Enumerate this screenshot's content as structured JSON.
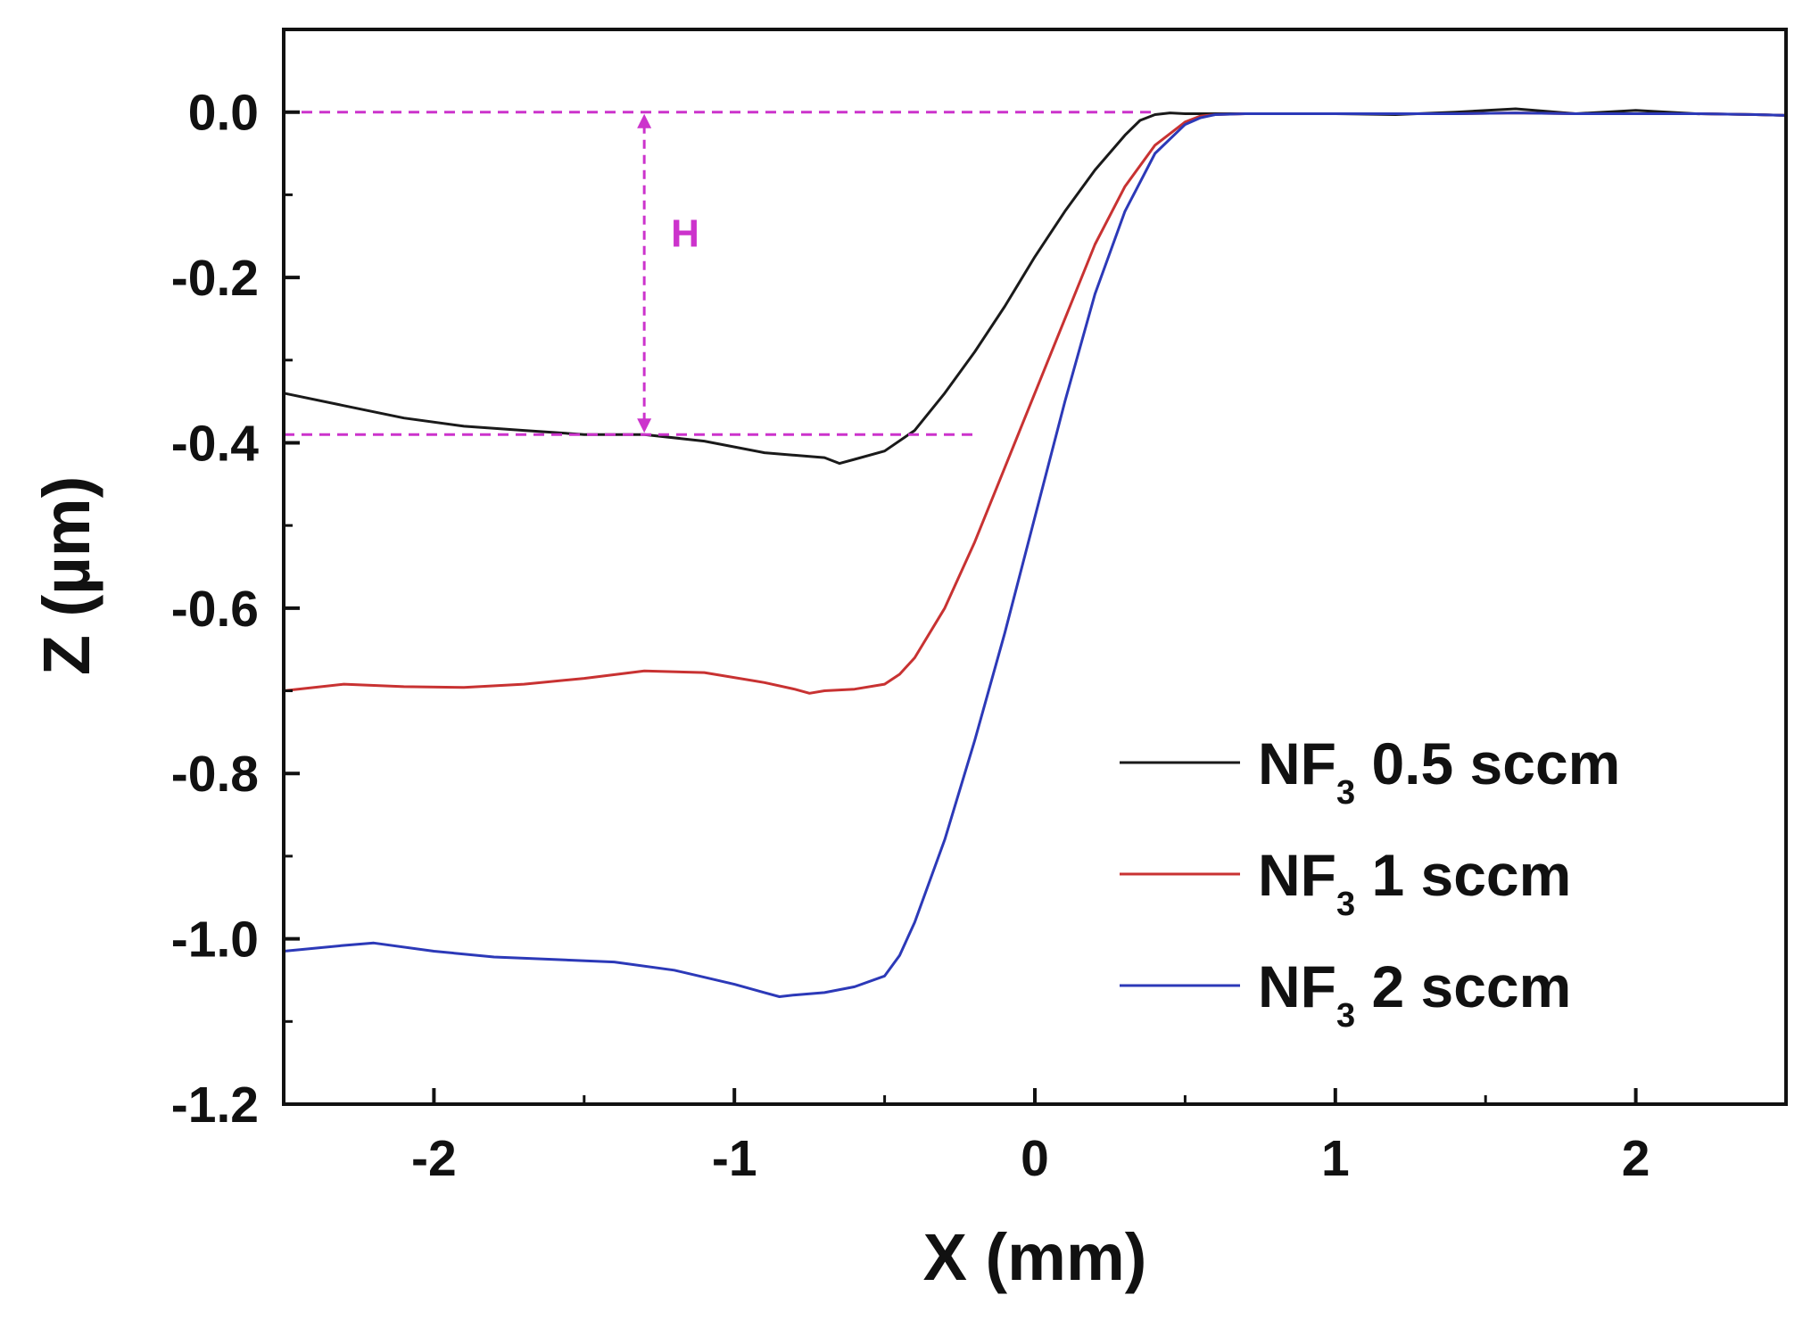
{
  "chart_data": {
    "type": "line",
    "title": "",
    "xlabel": "X (mm)",
    "ylabel": "Z (µm)",
    "xlim": [
      -2.5,
      2.5
    ],
    "ylim": [
      -1.2,
      0.1
    ],
    "x_ticks": [
      -2,
      -1,
      0,
      1,
      2
    ],
    "x_tick_labels": [
      "-2",
      "-1",
      "0",
      "1",
      "2"
    ],
    "y_ticks": [
      0.0,
      -0.2,
      -0.4,
      -0.6,
      -0.8,
      -1.0,
      -1.2
    ],
    "y_tick_labels": [
      "0.0",
      "-0.2",
      "-0.4",
      "-0.6",
      "-0.8",
      "-1.0",
      "-1.2"
    ],
    "grid": false,
    "legend_position": "bottom-right",
    "series": [
      {
        "name": "NF3 0.5 sccm",
        "legend_main": "NF",
        "legend_sub": "3",
        "legend_rest": " 0.5 sccm",
        "color": "#1a1a1a",
        "x": [
          -2.5,
          -2.3,
          -2.1,
          -1.9,
          -1.7,
          -1.5,
          -1.3,
          -1.1,
          -0.9,
          -0.8,
          -0.7,
          -0.65,
          -0.6,
          -0.5,
          -0.4,
          -0.3,
          -0.2,
          -0.1,
          0.0,
          0.1,
          0.2,
          0.3,
          0.35,
          0.4,
          0.45,
          0.5,
          0.6,
          0.8,
          1.0,
          1.2,
          1.4,
          1.6,
          1.8,
          2.0,
          2.2,
          2.4,
          2.5
        ],
        "y": [
          -0.34,
          -0.355,
          -0.37,
          -0.38,
          -0.385,
          -0.39,
          -0.39,
          -0.398,
          -0.412,
          -0.415,
          -0.418,
          -0.425,
          -0.42,
          -0.41,
          -0.385,
          -0.34,
          -0.29,
          -0.235,
          -0.175,
          -0.12,
          -0.07,
          -0.028,
          -0.01,
          -0.003,
          -0.001,
          -0.002,
          -0.002,
          -0.002,
          -0.002,
          -0.003,
          0.0,
          0.004,
          -0.002,
          0.002,
          -0.002,
          -0.003,
          -0.004
        ]
      },
      {
        "name": "NF3 1 sccm",
        "legend_main": "NF",
        "legend_sub": "3",
        "legend_rest": " 1 sccm",
        "color": "#c83232",
        "x": [
          -2.5,
          -2.3,
          -2.1,
          -1.9,
          -1.7,
          -1.5,
          -1.3,
          -1.1,
          -0.9,
          -0.8,
          -0.75,
          -0.7,
          -0.6,
          -0.5,
          -0.45,
          -0.4,
          -0.3,
          -0.2,
          -0.1,
          0.0,
          0.1,
          0.2,
          0.3,
          0.4,
          0.5,
          0.55,
          0.6,
          0.7,
          0.8,
          1.0,
          1.2,
          1.4,
          1.6,
          1.8,
          2.0,
          2.2,
          2.4,
          2.5
        ],
        "y": [
          -0.7,
          -0.692,
          -0.695,
          -0.696,
          -0.692,
          -0.685,
          -0.676,
          -0.678,
          -0.69,
          -0.698,
          -0.703,
          -0.7,
          -0.698,
          -0.692,
          -0.68,
          -0.66,
          -0.6,
          -0.52,
          -0.43,
          -0.34,
          -0.25,
          -0.16,
          -0.09,
          -0.04,
          -0.012,
          -0.005,
          -0.003,
          -0.002,
          -0.002,
          -0.002,
          -0.002,
          -0.002,
          -0.001,
          -0.002,
          -0.002,
          -0.002,
          -0.003,
          -0.004
        ]
      },
      {
        "name": "NF3 2 sccm",
        "legend_main": "NF",
        "legend_sub": "3",
        "legend_rest": " 2 sccm",
        "color": "#2c39b8",
        "x": [
          -2.5,
          -2.3,
          -2.2,
          -2.0,
          -1.8,
          -1.6,
          -1.4,
          -1.2,
          -1.0,
          -0.9,
          -0.85,
          -0.8,
          -0.7,
          -0.6,
          -0.5,
          -0.45,
          -0.4,
          -0.3,
          -0.2,
          -0.1,
          0.0,
          0.1,
          0.2,
          0.3,
          0.4,
          0.5,
          0.55,
          0.6,
          0.7,
          0.8,
          1.0,
          1.2,
          1.4,
          1.6,
          1.8,
          2.0,
          2.2,
          2.4,
          2.5
        ],
        "y": [
          -1.015,
          -1.008,
          -1.005,
          -1.015,
          -1.022,
          -1.025,
          -1.028,
          -1.038,
          -1.055,
          -1.065,
          -1.07,
          -1.068,
          -1.065,
          -1.058,
          -1.045,
          -1.02,
          -0.98,
          -0.88,
          -0.76,
          -0.63,
          -0.49,
          -0.35,
          -0.22,
          -0.12,
          -0.05,
          -0.015,
          -0.007,
          -0.003,
          -0.002,
          -0.002,
          -0.002,
          -0.002,
          -0.002,
          -0.001,
          -0.002,
          -0.002,
          -0.002,
          -0.003,
          -0.004
        ]
      }
    ],
    "annotation": {
      "label": "H",
      "color": "#cc33cc",
      "ref_top_y": 0.0,
      "ref_bottom_y": -0.39,
      "arrow_x": -1.3,
      "top_line_x_range": [
        -2.5,
        0.4
      ],
      "bottom_line_x_range": [
        -2.5,
        -0.2
      ]
    }
  }
}
